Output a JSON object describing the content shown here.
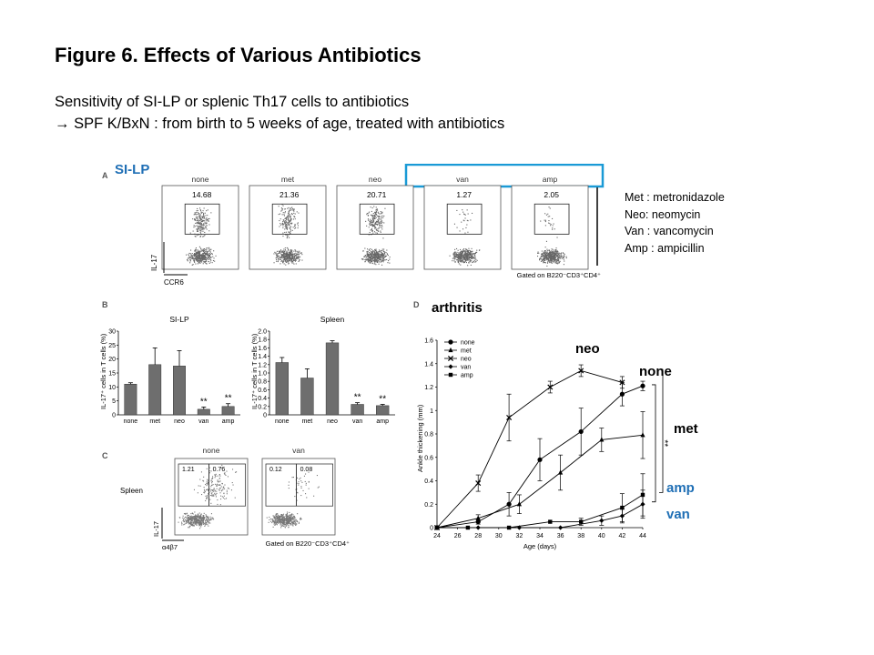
{
  "title": "Figure 6. Effects of Various Antibiotics",
  "subtitle_line1": "Sensitivity of SI-LP or splenic Th17 cells to antibiotics",
  "subtitle_arrow": "→",
  "subtitle_line2": "SPF K/BxN : from birth to 5 weeks of age, treated with antibiotics",
  "abbreviations": [
    "Met : metronidazole",
    "Neo: neomycin",
    "Van : vancomycin",
    "Amp : ampicillin"
  ],
  "colors": {
    "highlight_blue": "#1f6fb5",
    "box_blue": "#1a9ad6",
    "bar_gray": "#6e6e6e"
  },
  "panel_a": {
    "letter": "A",
    "overlay_label": "SI-LP",
    "conditions": [
      "none",
      "met",
      "neo",
      "van",
      "amp"
    ],
    "gate_values": [
      "14.68",
      "21.36",
      "20.71",
      "1.27",
      "2.05"
    ],
    "y_axis": "IL-17",
    "x_axis": "CCR6",
    "gated_note": "Gated on B220⁻CD3⁺CD4⁺"
  },
  "chart_data": [
    {
      "type": "bar",
      "panel": "B",
      "title": "SI-LP",
      "ylabel": "IL-17⁺ cells in T cells (%)",
      "categories": [
        "none",
        "met",
        "neo",
        "van",
        "amp"
      ],
      "values": [
        11,
        18,
        17.5,
        2,
        3
      ],
      "errors": [
        0.5,
        6,
        5.5,
        0.8,
        1
      ],
      "ylim": [
        0,
        30
      ],
      "yticks": [
        "0",
        "5",
        "10",
        "15",
        "20",
        "25",
        "30"
      ],
      "significance": [
        "",
        "",
        "",
        "**",
        "**"
      ]
    },
    {
      "type": "bar",
      "panel": "B",
      "title": "Spleen",
      "ylabel": "IL-17⁺ cells in T cells (%)",
      "categories": [
        "none",
        "met",
        "neo",
        "van",
        "amp"
      ],
      "values": [
        1.25,
        0.88,
        1.72,
        0.25,
        0.22
      ],
      "errors": [
        0.12,
        0.22,
        0.05,
        0.04,
        0.03
      ],
      "ylim": [
        0,
        2
      ],
      "yticks": [
        "0",
        "0.2",
        "0.4",
        "0.6",
        "0.8",
        "1.0",
        "1.2",
        "1.4",
        "1.6",
        "1.8",
        "2.0"
      ],
      "significance": [
        "",
        "",
        "",
        "**",
        "**"
      ]
    },
    {
      "type": "line",
      "panel": "D",
      "overlay_label": "arthritis",
      "xlabel": "Age (days)",
      "ylabel": "Ankle thickening (mm)",
      "xlim": [
        24,
        44
      ],
      "ylim": [
        0,
        1.6
      ],
      "xticks": [
        24,
        26,
        28,
        30,
        32,
        34,
        36,
        38,
        40,
        42,
        44
      ],
      "yticks": [
        "0",
        "0.2",
        "0.4",
        "0.6",
        "0.8",
        "1",
        "1.2",
        "1.4",
        "1.6"
      ],
      "series": [
        {
          "name": "none",
          "marker": "circle",
          "x": [
            24,
            28,
            31,
            34,
            38,
            42,
            44
          ],
          "y": [
            0,
            0.05,
            0.2,
            0.58,
            0.82,
            1.14,
            1.21
          ],
          "err": [
            0,
            0.02,
            0.1,
            0.18,
            0.2,
            0.1,
            0.04
          ]
        },
        {
          "name": "met",
          "marker": "triangle",
          "x": [
            24,
            28,
            32,
            36,
            40,
            44
          ],
          "y": [
            0,
            0.08,
            0.2,
            0.47,
            0.75,
            0.79
          ],
          "err": [
            0,
            0.03,
            0.08,
            0.15,
            0.1,
            0.2
          ]
        },
        {
          "name": "neo",
          "marker": "x",
          "x": [
            24,
            28,
            31,
            35,
            38,
            42
          ],
          "y": [
            0,
            0.38,
            0.94,
            1.2,
            1.34,
            1.24
          ],
          "err": [
            0,
            0.07,
            0.2,
            0.05,
            0.05,
            0.05
          ]
        },
        {
          "name": "van",
          "marker": "diamond",
          "x": [
            24,
            28,
            32,
            36,
            40,
            42,
            44
          ],
          "y": [
            0,
            0,
            0,
            0,
            0.06,
            0.1,
            0.2
          ],
          "err": [
            0,
            0,
            0,
            0,
            0.04,
            0.06,
            0.12
          ]
        },
        {
          "name": "amp",
          "marker": "square",
          "x": [
            24,
            27,
            31,
            35,
            38,
            42,
            44
          ],
          "y": [
            0,
            0,
            0,
            0.05,
            0.05,
            0.17,
            0.28
          ],
          "err": [
            0,
            0,
            0,
            0,
            0.03,
            0.12,
            0.18
          ]
        }
      ],
      "series_labels": [
        "neo",
        "none",
        "met",
        "amp",
        "van"
      ],
      "significance": [
        "**",
        "**"
      ]
    }
  ],
  "panel_c": {
    "letter": "C",
    "organ": "Spleen",
    "conditions": [
      "none",
      "van"
    ],
    "quadrant_values": [
      [
        "1.21",
        "0.76"
      ],
      [
        "0.12",
        "0.08"
      ]
    ],
    "y_axis": "IL-17",
    "x_axis": "α4β7",
    "gated_note": "Gated on B220⁻CD3⁺CD4⁺"
  },
  "panel_b_letter": "B",
  "panel_d_letter": "D"
}
